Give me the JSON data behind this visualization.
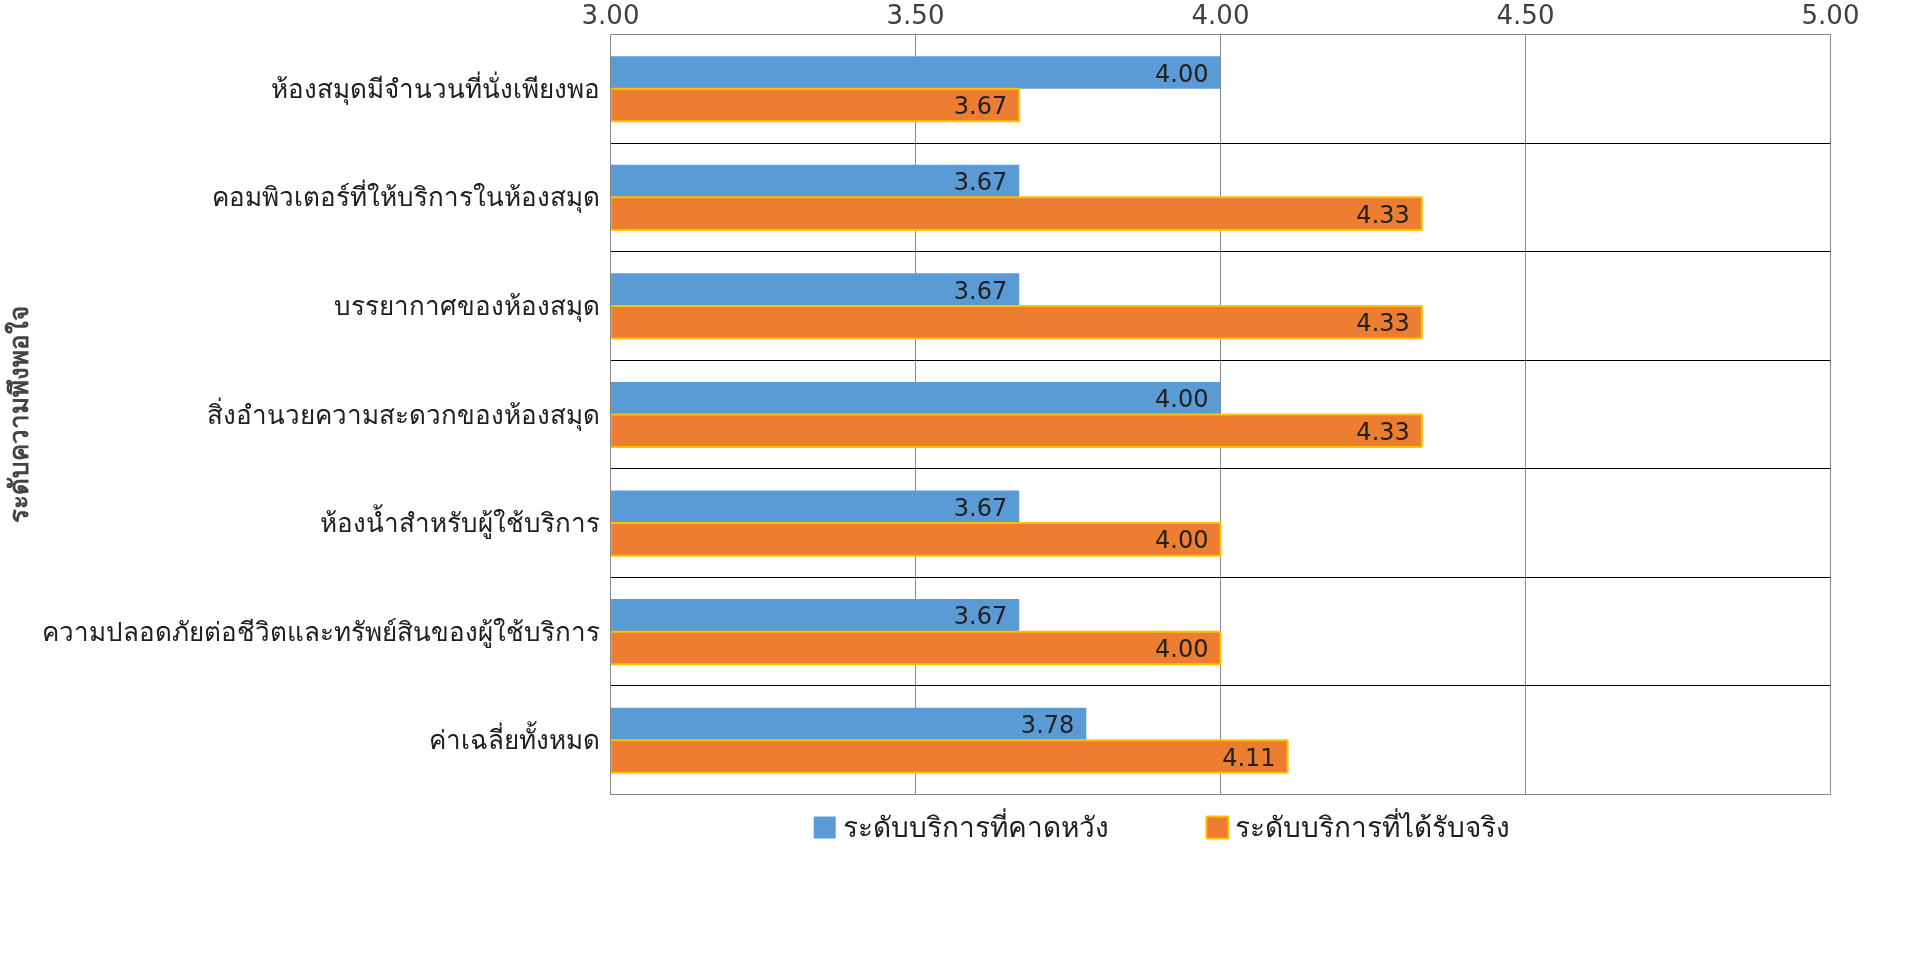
{
  "chart_data": {
    "type": "bar",
    "orientation": "horizontal",
    "ylabel": "ระดับความพึงพอใจ",
    "categories": [
      "ห้องสมุดมีจำนวนที่นั่งเพียงพอ",
      "คอมพิวเตอร์ที่ให้บริการในห้องสมุด",
      "บรรยากาศของห้องสมุด",
      "สิ่งอำนวยความสะดวกของห้องสมุด",
      "ห้องน้ำสำหรับผู้ใช้บริการ",
      "ความปลอดภัยต่อชีวิตและทรัพย์สินของผู้ใช้บริการ",
      "ค่าเฉลี่ยทั้งหมด"
    ],
    "series": [
      {
        "name": "ระดับบริการที่คาดหวัง",
        "color": "#5b9bd5",
        "values": [
          4.0,
          3.67,
          3.67,
          4.0,
          3.67,
          3.67,
          3.78
        ],
        "value_labels": [
          "4.00",
          "3.67",
          "3.67",
          "4.00",
          "3.67",
          "3.67",
          "3.78"
        ]
      },
      {
        "name": "ระดับบริการที่ได้รับจริง",
        "color": "#ed7d31",
        "values": [
          3.67,
          4.33,
          4.33,
          4.33,
          4.0,
          4.0,
          4.11
        ],
        "value_labels": [
          "3.67",
          "4.33",
          "4.33",
          "4.33",
          "4.00",
          "4.00",
          "4.11"
        ]
      }
    ],
    "xlim": [
      3,
      5
    ],
    "xticks": [
      {
        "value": 3,
        "label": "3.00"
      },
      {
        "value": 3.5,
        "label": "3.50"
      },
      {
        "value": 4,
        "label": "4.00"
      },
      {
        "value": 4.5,
        "label": "4.50"
      },
      {
        "value": 5,
        "label": "5.00"
      }
    ],
    "grid": true,
    "legend": "bottom"
  }
}
